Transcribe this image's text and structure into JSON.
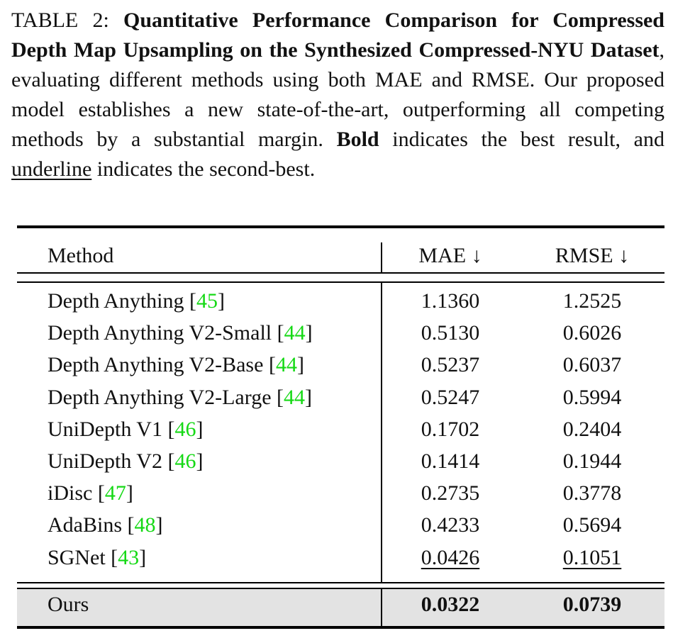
{
  "caption": {
    "label": "TABLE 2: ",
    "bold_title": "Quantitative Performance Comparison for Com­pressed Depth Map Upsampling on the Synthesized Compressed-NYU Dataset",
    "text1": ", evaluating different methods using both MAE and RMSE. Our proposed model estab­lishes a new state-of-the-art, outperforming all competing methods by a substantial margin. ",
    "bold_word": "Bold",
    "text2": " indicates the best result, and ",
    "underline_word": "underline",
    "text3": " indicates the second-best."
  },
  "table": {
    "headers": {
      "method": "Method",
      "mae": "MAE ↓",
      "rmse": "RMSE ↓"
    },
    "rows": [
      {
        "method": "Depth Anything",
        "ref": "45",
        "mae": "1.1360",
        "rmse": "1.2525"
      },
      {
        "method": "Depth Anything V2-Small",
        "ref": "44",
        "mae": "0.5130",
        "rmse": "0.6026"
      },
      {
        "method": "Depth Anything V2-Base",
        "ref": "44",
        "mae": "0.5237",
        "rmse": "0.6037"
      },
      {
        "method": "Depth Anything V2-Large",
        "ref": "44",
        "mae": "0.5247",
        "rmse": "0.5994"
      },
      {
        "method": "UniDepth V1",
        "ref": "46",
        "mae": "0.1702",
        "rmse": "0.2404"
      },
      {
        "method": "UniDepth V2",
        "ref": "46",
        "mae": "0.1414",
        "rmse": "0.1944"
      },
      {
        "method": "iDisc",
        "ref": "47",
        "mae": "0.2735",
        "rmse": "0.3778"
      },
      {
        "method": "AdaBins",
        "ref": "48",
        "mae": "0.4233",
        "rmse": "0.5694"
      },
      {
        "method": "SGNet",
        "ref": "43",
        "mae": "0.0426",
        "rmse": "0.1051"
      }
    ],
    "ours": {
      "method": "Ours",
      "mae": "0.0322",
      "rmse": "0.0739"
    }
  },
  "colors": {
    "citation": "#16d916",
    "highlight_row": "#e3e3e3"
  }
}
